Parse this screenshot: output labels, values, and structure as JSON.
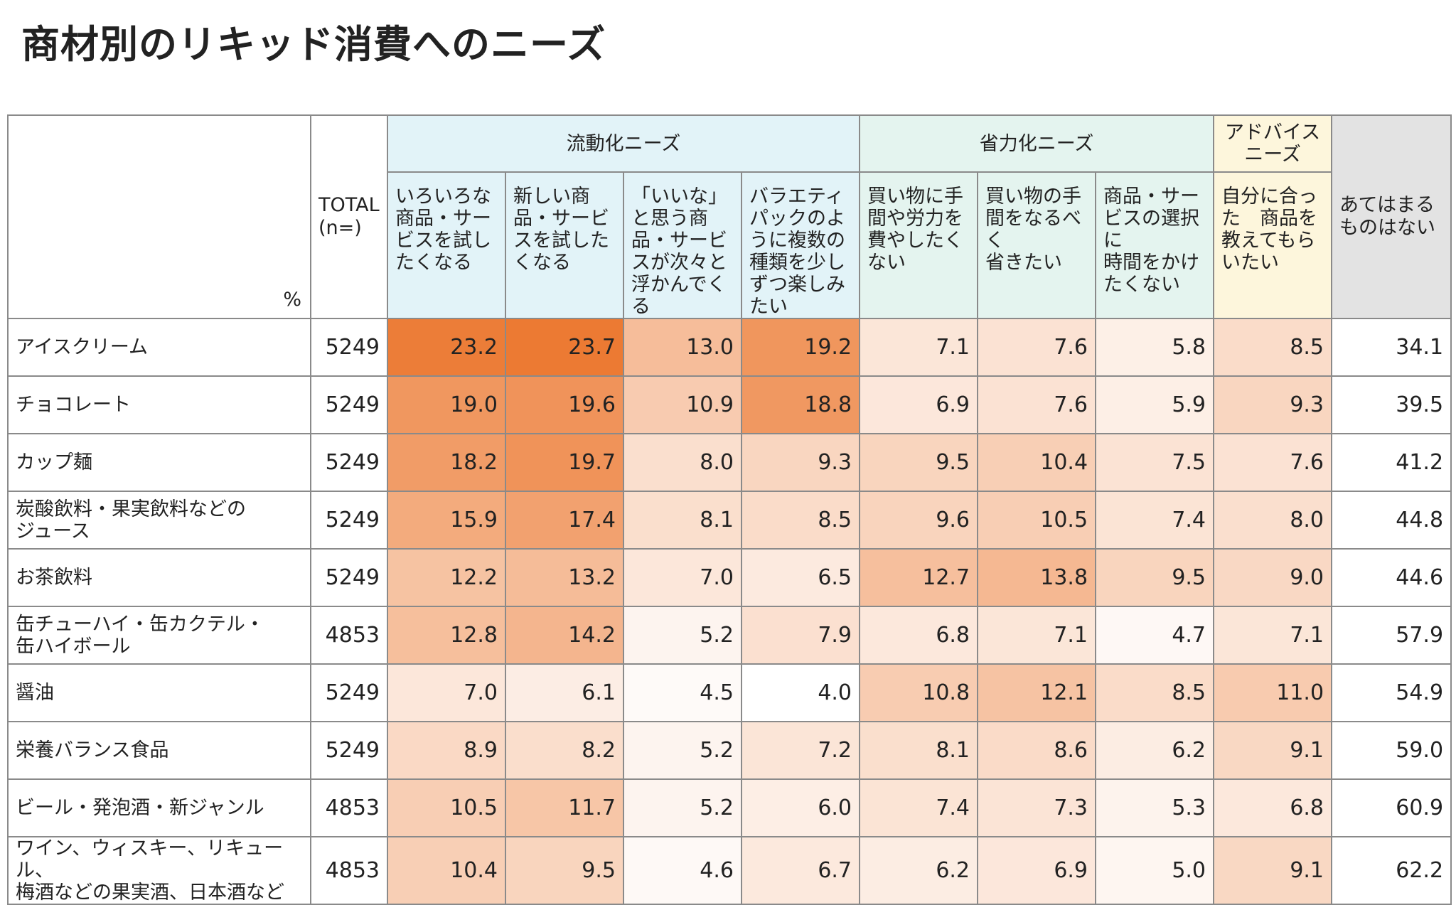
{
  "title": "商材別のリキッド消費へのニーズ",
  "header": {
    "pct_label": "%",
    "total_label": "TOTAL\n(n=)",
    "groups": [
      {
        "label": "流動化ニーズ",
        "span": 4,
        "color": "#e2f3f8"
      },
      {
        "label": "省力化ニーズ",
        "span": 3,
        "color": "#e4f4ef"
      },
      {
        "label": "アドバイス\nニーズ",
        "span": 1,
        "color": "#fdf6dc"
      }
    ],
    "none_label": "あてはまる\nものはない",
    "columns": [
      {
        "label": "いろいろな\n商品・サー\nビスを試し\nたくなる",
        "group": 0
      },
      {
        "label": "新しい商\n品・サービ\nスを試した\nくなる",
        "group": 0
      },
      {
        "label": "「いいな」\nと思う商\n品・サービ\nスが次々と\n浮かんでく\nる",
        "group": 0
      },
      {
        "label": "バラエティ\nパックのよ\nうに複数の\n種類を少し\nずつ楽しみ\nたい",
        "group": 0
      },
      {
        "label": "買い物に手\n間や労力を\n費やしたく\nない",
        "group": 1
      },
      {
        "label": "買い物の手\n間をなるべ\nく\n省きたい",
        "group": 1
      },
      {
        "label": "商品・サー\nビスの選択\nに\n時間をかけ\nたくない",
        "group": 1
      },
      {
        "label": "自分に合っ\nた　商品を\n教えてもら\nいたい",
        "group": 2
      }
    ]
  },
  "chart_data": {
    "type": "table",
    "title": "商材別のリキッド消費へのニーズ",
    "unit": "%",
    "rows": [
      {
        "label": "アイスクリーム",
        "n": 5249,
        "values": [
          23.2,
          23.7,
          13.0,
          19.2,
          7.1,
          7.6,
          5.8,
          8.5
        ],
        "none": 34.1
      },
      {
        "label": "チョコレート",
        "n": 5249,
        "values": [
          19.0,
          19.6,
          10.9,
          18.8,
          6.9,
          7.6,
          5.9,
          9.3
        ],
        "none": 39.5
      },
      {
        "label": "カップ麺",
        "n": 5249,
        "values": [
          18.2,
          19.7,
          8.0,
          9.3,
          9.5,
          10.4,
          7.5,
          7.6
        ],
        "none": 41.2
      },
      {
        "label": "炭酸飲料・果実飲料などの\nジュース",
        "n": 5249,
        "values": [
          15.9,
          17.4,
          8.1,
          8.5,
          9.6,
          10.5,
          7.4,
          8.0
        ],
        "none": 44.8
      },
      {
        "label": "お茶飲料",
        "n": 5249,
        "values": [
          12.2,
          13.2,
          7.0,
          6.5,
          12.7,
          13.8,
          9.5,
          9.0
        ],
        "none": 44.6
      },
      {
        "label": "缶チューハイ・缶カクテル・\n缶ハイボール",
        "n": 4853,
        "values": [
          12.8,
          14.2,
          5.2,
          7.9,
          6.8,
          7.1,
          4.7,
          7.1
        ],
        "none": 57.9
      },
      {
        "label": "醤油",
        "n": 5249,
        "values": [
          7.0,
          6.1,
          4.5,
          4.0,
          10.8,
          12.1,
          8.5,
          11.0
        ],
        "none": 54.9
      },
      {
        "label": "栄養バランス食品",
        "n": 5249,
        "values": [
          8.9,
          8.2,
          5.2,
          7.2,
          8.1,
          8.6,
          6.2,
          9.1
        ],
        "none": 59.0
      },
      {
        "label": "ビール・発泡酒・新ジャンル",
        "n": 4853,
        "values": [
          10.5,
          11.7,
          5.2,
          6.0,
          7.4,
          7.3,
          5.3,
          6.8
        ],
        "none": 60.9
      },
      {
        "label": "ワイン、ウィスキー、リキュール、\n梅酒などの果実酒、日本酒など",
        "n": 4853,
        "values": [
          10.4,
          9.5,
          4.6,
          6.7,
          6.2,
          6.9,
          5.0,
          9.1
        ],
        "none": 62.2
      }
    ],
    "heat_color_high": "#ec7a33",
    "heat_color_low": "#ffffff",
    "heat_max": 23.7,
    "heat_min": 4.0
  }
}
